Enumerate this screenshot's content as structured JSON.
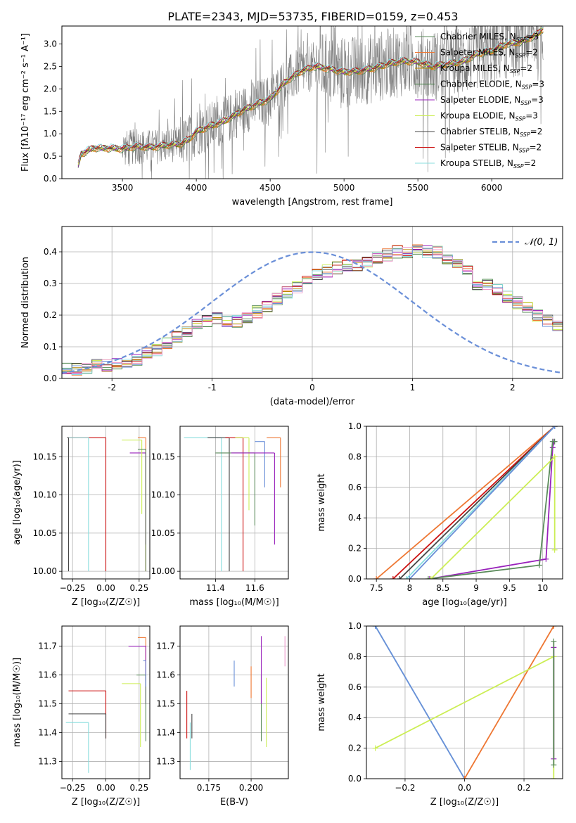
{
  "figure": {
    "title": "PLATE=2343, MJD=53735, FIBERID=0159, z=0.453"
  },
  "chart_data": [
    {
      "id": "spectrum",
      "type": "line",
      "xlabel": "wavelength [Angstrom, rest frame]",
      "ylabel": "Flux [fλ10⁻¹⁷ erg cm⁻² s⁻¹ A⁻¹]",
      "xlim": [
        3090,
        6480
      ],
      "ylim": [
        0,
        3.4
      ],
      "xticks": [
        3500,
        4000,
        4500,
        5000,
        5500,
        6000
      ],
      "yticks": [
        0.0,
        0.5,
        1.0,
        1.5,
        2.0,
        2.5,
        3.0
      ],
      "grid": false,
      "legend_position": "top-right",
      "data_points": [
        [
          3200,
          0.3
        ],
        [
          3220,
          0.55
        ],
        [
          3300,
          0.68
        ],
        [
          3400,
          0.68
        ],
        [
          3500,
          0.67
        ],
        [
          3600,
          0.72
        ],
        [
          3700,
          0.7
        ],
        [
          3800,
          0.75
        ],
        [
          3900,
          0.78
        ],
        [
          3950,
          0.88
        ],
        [
          4000,
          1.05
        ],
        [
          4100,
          1.18
        ],
        [
          4200,
          1.3
        ],
        [
          4300,
          1.5
        ],
        [
          4400,
          1.65
        ],
        [
          4500,
          1.78
        ],
        [
          4600,
          2.15
        ],
        [
          4700,
          2.38
        ],
        [
          4800,
          2.5
        ],
        [
          4900,
          2.45
        ],
        [
          5000,
          2.38
        ],
        [
          5100,
          2.4
        ],
        [
          5200,
          2.46
        ],
        [
          5300,
          2.56
        ],
        [
          5400,
          2.62
        ],
        [
          5500,
          2.6
        ],
        [
          5600,
          2.5
        ],
        [
          5700,
          2.56
        ],
        [
          5800,
          2.6
        ],
        [
          5900,
          2.78
        ],
        [
          6000,
          2.85
        ],
        [
          6100,
          3.0
        ],
        [
          6200,
          3.05
        ],
        [
          6300,
          3.2
        ],
        [
          6350,
          3.35
        ]
      ],
      "series": [
        {
          "name": "Chabrier MILES, N",
          "sub": "SSP",
          "suffix": "=3",
          "color": "#5a8a5a"
        },
        {
          "name": "Salpeter MILES, N",
          "sub": "SSP",
          "suffix": "=2",
          "color": "#ee7733"
        },
        {
          "name": "Kroupa MILES, N",
          "sub": "SSP",
          "suffix": "=2",
          "color": "#bb8800"
        },
        {
          "name": "Chabrier ELODIE, N",
          "sub": "SSP",
          "suffix": "=3",
          "color": "#3a7a3a"
        },
        {
          "name": "Salpeter ELODIE, N",
          "sub": "SSP",
          "suffix": "=3",
          "color": "#9922bb"
        },
        {
          "name": "Kroupa ELODIE, N",
          "sub": "SSP",
          "suffix": "=3",
          "color": "#ccee55"
        },
        {
          "name": "Chabrier STELIB, N",
          "sub": "SSP",
          "suffix": "=2",
          "color": "#444444"
        },
        {
          "name": "Salpeter STELIB, N",
          "sub": "SSP",
          "suffix": "=2",
          "color": "#cc1111"
        },
        {
          "name": "Kroupa STELIB, N",
          "sub": "SSP",
          "suffix": "=2",
          "color": "#88dddd"
        }
      ]
    },
    {
      "id": "residuals",
      "type": "line",
      "xlabel": "(data-model)/error",
      "ylabel": "Normed distribution",
      "xlim": [
        -2.5,
        2.5
      ],
      "ylim": [
        0,
        0.48
      ],
      "xticks": [
        -2,
        -1,
        0,
        1,
        2
      ],
      "yticks": [
        0.0,
        0.1,
        0.2,
        0.3,
        0.4
      ],
      "grid": true,
      "legend_position": "top-right",
      "gaussian_label": "𝒩(0, 1)",
      "gaussian_color": "#6a8fd8",
      "bin_width": 0.1,
      "bin_start": -2.5,
      "histogram_base": [
        0.03,
        0.03,
        0.03,
        0.04,
        0.04,
        0.05,
        0.05,
        0.06,
        0.08,
        0.09,
        0.11,
        0.13,
        0.15,
        0.17,
        0.18,
        0.19,
        0.18,
        0.18,
        0.19,
        0.21,
        0.23,
        0.25,
        0.27,
        0.29,
        0.31,
        0.33,
        0.34,
        0.35,
        0.36,
        0.36,
        0.37,
        0.38,
        0.39,
        0.4,
        0.4,
        0.41,
        0.4,
        0.4,
        0.38,
        0.37,
        0.34,
        0.3,
        0.3,
        0.28,
        0.26,
        0.24,
        0.22,
        0.2,
        0.18,
        0.17,
        0.15,
        0.13,
        0.12,
        0.11,
        0.1,
        0.09,
        0.08,
        0.07,
        0.07,
        0.06,
        0.06,
        0.06,
        0.05,
        0.05,
        0.05,
        0.05,
        0.04,
        0.04,
        0.04,
        0.04
      ]
    },
    {
      "id": "age-vs-Z",
      "type": "scatter",
      "xlabel": "Z [log₁₀(Z/Z☉)]",
      "ylabel": "age  [log₁₀(age/yr)]",
      "xlim": [
        -0.33,
        0.33
      ],
      "ylim": [
        9.99,
        10.19
      ],
      "xticks": [
        -0.25,
        0.0,
        0.25
      ],
      "xtick_labels": [
        "−0.25",
        "0.00",
        "0.25"
      ],
      "yticks": [
        10.0,
        10.05,
        10.1,
        10.15
      ],
      "yticks_labels": [
        "10.00",
        "10.05",
        "10.10",
        "10.15"
      ],
      "grid": true,
      "points": [
        {
          "color": "#cc1111",
          "x": 0.0,
          "y": 10.175,
          "x0": -0.29,
          "y0": 10.0
        },
        {
          "color": "#88dddd",
          "x": -0.13,
          "y": 10.175,
          "x0": -0.29,
          "y0": 10.0
        },
        {
          "color": "#444444",
          "x": -0.28,
          "y": 10.175,
          "x0": -0.29,
          "y0": 10.0
        },
        {
          "color": "#ee7733",
          "x": 0.3,
          "y": 10.175,
          "x0": 0.24,
          "y0": 10.0
        },
        {
          "color": "#9922bb",
          "x": 0.3,
          "y": 10.155,
          "x0": 0.18,
          "y0": 10.035
        },
        {
          "color": "#ccee55",
          "x": 0.27,
          "y": 10.172,
          "x0": 0.12,
          "y0": 10.075
        },
        {
          "color": "#5a8a5a",
          "x": 0.3,
          "y": 10.16,
          "x0": 0.24,
          "y0": 10.0
        }
      ]
    },
    {
      "id": "age-vs-mass",
      "type": "scatter",
      "xlabel": "mass [log₁₀(M/M☉)]",
      "ylabel": "",
      "xlim": [
        11.22,
        11.77
      ],
      "ylim": [
        9.99,
        10.19
      ],
      "xticks": [
        11.4,
        11.6
      ],
      "xtick_labels": [
        "11.4",
        "11.6"
      ],
      "yticks": [
        10.0,
        10.05,
        10.1,
        10.15
      ],
      "yticks_labels": [
        "10.00",
        "10.05",
        "10.10",
        "10.15"
      ],
      "grid": true,
      "points": [
        {
          "color": "#88dddd",
          "x": 11.43,
          "y": 10.175,
          "x0": 11.24,
          "y0": 10.0
        },
        {
          "color": "#444444",
          "x": 11.47,
          "y": 10.175,
          "x0": 11.36,
          "y0": 10.0
        },
        {
          "color": "#cc1111",
          "x": 11.54,
          "y": 10.175,
          "x0": 11.45,
          "y0": 10.0
        },
        {
          "color": "#ccee55",
          "x": 11.57,
          "y": 10.175,
          "x0": 11.5,
          "y0": 10.08
        },
        {
          "color": "#5a8a5a",
          "x": 11.6,
          "y": 10.155,
          "x0": 11.4,
          "y0": 10.06
        },
        {
          "color": "#6a8fd8",
          "x": 11.65,
          "y": 10.17,
          "x0": 11.6,
          "y0": 10.11
        },
        {
          "color": "#9922bb",
          "x": 11.7,
          "y": 10.155,
          "x0": 11.48,
          "y0": 10.035
        },
        {
          "color": "#ee7733",
          "x": 11.73,
          "y": 10.175,
          "x0": 11.66,
          "y0": 10.11
        }
      ]
    },
    {
      "id": "weight-vs-age",
      "type": "line",
      "xlabel": "age  [log₁₀(age/yr)]",
      "ylabel": "mass weight",
      "xlim": [
        7.35,
        10.3
      ],
      "ylim": [
        0.0,
        1.0
      ],
      "xticks": [
        7.5,
        8.0,
        8.5,
        9.0,
        9.5,
        10.0
      ],
      "yticks": [
        0.0,
        0.2,
        0.4,
        0.6,
        0.8,
        1.0
      ],
      "grid": true,
      "series": [
        {
          "color": "#ee7733",
          "points": [
            [
              7.5,
              0.0
            ],
            [
              10.18,
              1.0
            ]
          ]
        },
        {
          "color": "#cc1111",
          "points": [
            [
              7.75,
              0.0
            ],
            [
              10.18,
              1.0
            ]
          ]
        },
        {
          "color": "#444444",
          "points": [
            [
              7.85,
              0.0
            ],
            [
              10.18,
              1.0
            ]
          ]
        },
        {
          "color": "#88dddd",
          "points": [
            [
              7.95,
              0.0
            ],
            [
              10.18,
              1.0
            ]
          ]
        },
        {
          "color": "#6a8fd8",
          "points": [
            [
              8.0,
              0.0
            ],
            [
              10.18,
              1.0
            ]
          ]
        },
        {
          "color": "#9922bb",
          "points": [
            [
              8.3,
              0.0
            ],
            [
              10.05,
              0.13
            ],
            [
              10.15,
              0.86
            ],
            [
              10.17,
              0.9
            ]
          ]
        },
        {
          "color": "#5a8a5a",
          "points": [
            [
              8.28,
              0.0
            ],
            [
              9.95,
              0.09
            ],
            [
              10.15,
              0.9
            ],
            [
              10.18,
              0.9
            ]
          ]
        },
        {
          "color": "#ccee55",
          "points": [
            [
              8.32,
              0.0
            ],
            [
              10.18,
              0.8
            ],
            [
              10.18,
              0.19
            ]
          ]
        }
      ]
    },
    {
      "id": "mass-vs-Z",
      "type": "scatter",
      "xlabel": "Z [log₁₀(Z/Z☉)]",
      "ylabel": "mass [log₁₀(M/M☉)]",
      "xlim": [
        -0.33,
        0.33
      ],
      "ylim": [
        11.24,
        11.77
      ],
      "xticks": [
        -0.25,
        0.0,
        0.25
      ],
      "xtick_labels": [
        "−0.25",
        "0.00",
        "0.25"
      ],
      "yticks": [
        11.3,
        11.4,
        11.5,
        11.6,
        11.7
      ],
      "yticks_labels": [
        "11.3",
        "11.4",
        "11.5",
        "11.6",
        "11.7"
      ],
      "grid": true,
      "points": [
        {
          "color": "#cc1111",
          "x": 0.0,
          "y": 11.545,
          "x0": -0.28,
          "y0": 11.38
        },
        {
          "color": "#444444",
          "x": 0.0,
          "y": 11.465,
          "x0": -0.28,
          "y0": 11.38
        },
        {
          "color": "#88dddd",
          "x": -0.13,
          "y": 11.435,
          "x0": -0.3,
          "y0": 11.26
        },
        {
          "color": "#ee7733",
          "x": 0.3,
          "y": 11.73,
          "x0": 0.24,
          "y0": 11.58
        },
        {
          "color": "#9922bb",
          "x": 0.3,
          "y": 11.7,
          "x0": 0.17,
          "y0": 11.5
        },
        {
          "color": "#ccee55",
          "x": 0.26,
          "y": 11.57,
          "x0": 0.12,
          "y0": 11.35
        },
        {
          "color": "#5a8a5a",
          "x": 0.3,
          "y": 11.6,
          "x0": 0.23,
          "y0": 11.37
        },
        {
          "color": "#6a8fd8",
          "x": 0.3,
          "y": 11.65,
          "x0": 0.28,
          "y0": 11.56
        }
      ]
    },
    {
      "id": "mass-vs-ebv",
      "type": "scatter",
      "xlabel": "E(B-V)",
      "ylabel": "",
      "xlim": [
        0.158,
        0.222
      ],
      "ylim": [
        11.24,
        11.77
      ],
      "xticks": [
        0.175,
        0.2
      ],
      "xtick_labels": [
        "0.175",
        "0.200"
      ],
      "yticks": [
        11.3,
        11.4,
        11.5,
        11.6,
        11.7
      ],
      "yticks_labels": [
        "11.3",
        "11.4",
        "11.5",
        "11.6",
        "11.7"
      ],
      "grid": true,
      "points": [
        {
          "color": "#cc1111",
          "x": 0.162,
          "y0": 11.38,
          "y1": 11.545
        },
        {
          "color": "#444444",
          "x": 0.165,
          "y0": 11.38,
          "y1": 11.465
        },
        {
          "color": "#88dddd",
          "x": 0.164,
          "y0": 11.27,
          "y1": 11.435
        },
        {
          "color": "#6a8fd8",
          "x": 0.19,
          "y0": 11.56,
          "y1": 11.65
        },
        {
          "color": "#ee7733",
          "x": 0.2,
          "y0": 11.52,
          "y1": 11.63
        },
        {
          "color": "#5a8a5a",
          "x": 0.206,
          "y0": 11.37,
          "y1": 11.6
        },
        {
          "color": "#9922bb",
          "x": 0.206,
          "y0": 11.5,
          "y1": 11.735
        },
        {
          "color": "#ccee55",
          "x": 0.209,
          "y0": 11.35,
          "y1": 11.59
        },
        {
          "color": "#ee99cc",
          "x": 0.22,
          "y0": 11.63,
          "y1": 11.735
        }
      ]
    },
    {
      "id": "weight-vs-Z",
      "type": "line",
      "xlabel": "Z [log₁₀(Z/Z☉)]",
      "ylabel": "mass weight",
      "xlim": [
        -0.33,
        0.33
      ],
      "ylim": [
        0.0,
        1.0
      ],
      "xticks": [
        -0.2,
        0.0,
        0.2
      ],
      "xtick_labels": [
        "−0.2",
        "0.0",
        "0.2"
      ],
      "yticks": [
        0.0,
        0.2,
        0.4,
        0.6,
        0.8,
        1.0
      ],
      "grid": true,
      "series": [
        {
          "color": "#88dddd",
          "points": [
            [
              -0.3,
              1.0
            ],
            [
              0.0,
              0.0
            ]
          ]
        },
        {
          "color": "#6a8fd8",
          "points": [
            [
              -0.3,
              1.0
            ],
            [
              0.0,
              0.0
            ]
          ]
        },
        {
          "color": "#ee7733",
          "points": [
            [
              0.0,
              0.0
            ],
            [
              0.3,
              1.0
            ]
          ]
        },
        {
          "color": "#ccee55",
          "points": [
            [
              -0.3,
              0.2
            ],
            [
              0.3,
              0.8
            ],
            [
              0.3,
              0.0
            ]
          ]
        },
        {
          "color": "#9922bb",
          "points": [
            [
              0.3,
              0.86
            ],
            [
              0.3,
              0.13
            ]
          ]
        },
        {
          "color": "#5a8a5a",
          "points": [
            [
              0.3,
              0.9
            ],
            [
              0.3,
              0.09
            ]
          ]
        }
      ]
    }
  ]
}
